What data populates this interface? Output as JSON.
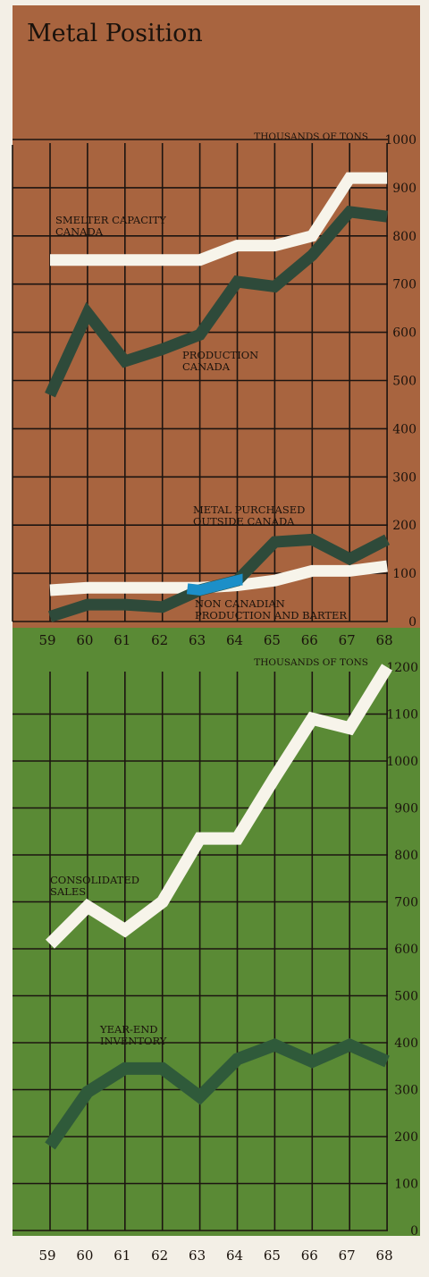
{
  "title": "Metal Position",
  "colors": {
    "top_background": "#a8643f",
    "bottom_background": "#5a8a35",
    "grid": "#1c1410",
    "light_series": "#f7f4ea",
    "dark_series_top": "#2e4a3a",
    "dark_series_bottom": "#2f5a3a",
    "highlight": "#1c8fc8"
  },
  "chart_data": [
    {
      "type": "line",
      "unit_label": "THOUSANDS OF TONS",
      "categories": [
        "59",
        "60",
        "61",
        "62",
        "63",
        "64",
        "65",
        "66",
        "67",
        "68"
      ],
      "y_ticks": [
        "1000",
        "900",
        "800",
        "700",
        "600",
        "500",
        "400",
        "300",
        "200",
        "100",
        "0"
      ],
      "ylim": [
        0,
        1000
      ],
      "grid": true,
      "series": [
        {
          "name": "SMELTER CAPACITY CANADA",
          "label_lines": [
            "SMELTER CAPACITY",
            "CANADA"
          ],
          "color": "light",
          "values": [
            750,
            750,
            750,
            750,
            750,
            780,
            780,
            800,
            920,
            920
          ]
        },
        {
          "name": "PRODUCTION CANADA",
          "label_lines": [
            "PRODUCTION",
            "CANADA"
          ],
          "color": "dark",
          "values": [
            470,
            640,
            540,
            565,
            595,
            705,
            695,
            760,
            850,
            840
          ]
        },
        {
          "name": "METAL PURCHASED OUTSIDE CANADA",
          "label_lines": [
            "METAL PURCHASED",
            "OUTSIDE CANADA"
          ],
          "color": "dark",
          "values": [
            10,
            35,
            35,
            30,
            65,
            85,
            165,
            170,
            130,
            170
          ]
        },
        {
          "name": "NON CANADIAN PRODUCTION AND BARTER",
          "label_lines": [
            "NON CANADIAN",
            "PRODUCTION AND BARTER"
          ],
          "color": "light",
          "values": [
            65,
            70,
            70,
            70,
            70,
            75,
            85,
            105,
            105,
            115
          ]
        }
      ]
    },
    {
      "type": "line",
      "unit_label": "THOUSANDS OF TONS",
      "categories": [
        "59",
        "60",
        "61",
        "62",
        "63",
        "64",
        "65",
        "66",
        "67",
        "68"
      ],
      "y_ticks": [
        "1200",
        "1100",
        "1000",
        "900",
        "800",
        "700",
        "600",
        "500",
        "400",
        "300",
        "200",
        "100",
        "0"
      ],
      "ylim": [
        0,
        1200
      ],
      "grid": true,
      "series": [
        {
          "name": "CONSOLIDATED SALES",
          "label_lines": [
            "CONSOLIDATED",
            "SALES"
          ],
          "color": "light",
          "values": [
            610,
            690,
            640,
            700,
            835,
            835,
            965,
            1090,
            1070,
            1200
          ]
        },
        {
          "name": "YEAR-END INVENTORY",
          "label_lines": [
            "YEAR-END",
            "INVENTORY"
          ],
          "color": "dark",
          "values": [
            180,
            295,
            345,
            345,
            285,
            365,
            395,
            360,
            395,
            360
          ]
        }
      ]
    }
  ]
}
